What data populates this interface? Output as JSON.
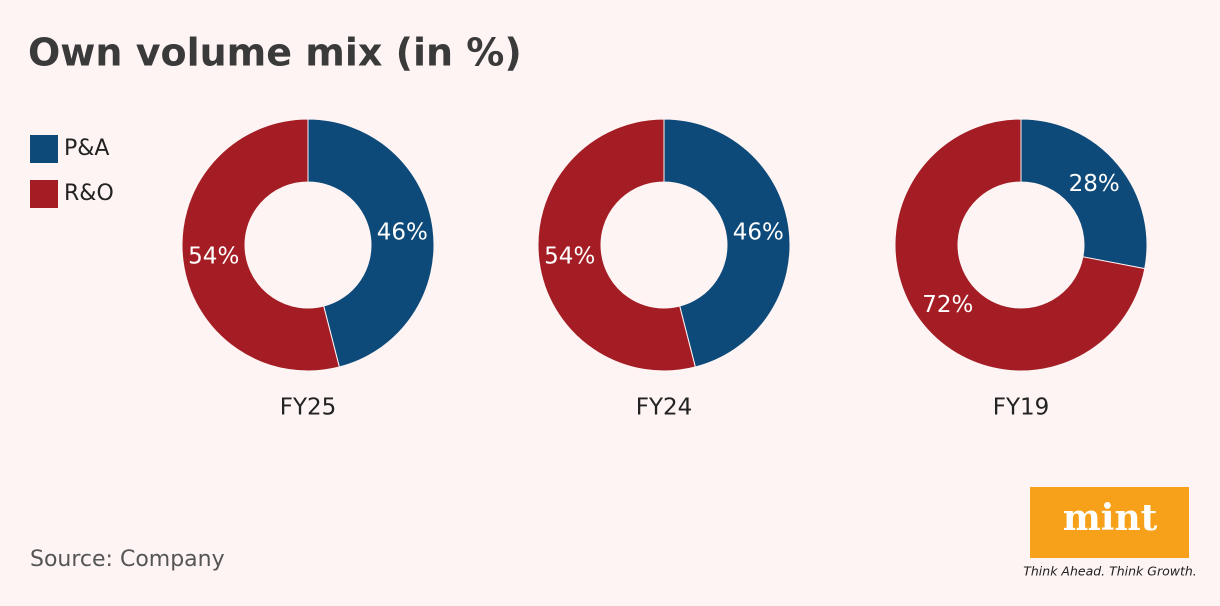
{
  "title": "Own volume mix (in %)",
  "source": "Source: Company",
  "logo": {
    "name": "mint",
    "tagline": "Think Ahead. Think Growth."
  },
  "chart_data": [
    {
      "type": "donut",
      "label": "FY25",
      "categories": [
        "P&A",
        "R&O"
      ],
      "values": [
        46,
        54
      ],
      "value_labels": [
        "46%",
        "54%"
      ],
      "colors": [
        "#0d4a7a",
        "#a51d24"
      ]
    },
    {
      "type": "donut",
      "label": "FY24",
      "categories": [
        "P&A",
        "R&O"
      ],
      "values": [
        46,
        54
      ],
      "value_labels": [
        "46%",
        "54%"
      ],
      "colors": [
        "#0d4a7a",
        "#a51d24"
      ]
    },
    {
      "type": "donut",
      "label": "FY19",
      "categories": [
        "P&A",
        "R&O"
      ],
      "values": [
        28,
        72
      ],
      "value_labels": [
        "28%",
        "72%"
      ],
      "colors": [
        "#0d4a7a",
        "#a51d24"
      ]
    }
  ]
}
